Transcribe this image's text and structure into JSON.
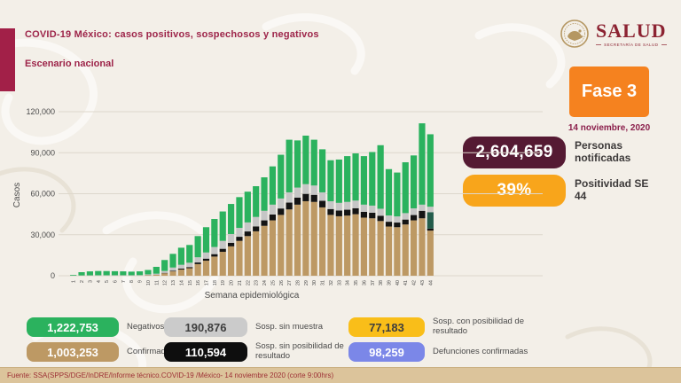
{
  "header": {
    "title": "COVID-19 México: casos positivos, sospechosos y negativos",
    "subtitle": "Escenario nacional"
  },
  "logo": {
    "name": "SALUD",
    "subtext": "SECRETARÍA DE SALUD"
  },
  "phase": {
    "label": "Fase 3",
    "date": "14 noviembre, 2020",
    "color": "#F5821F"
  },
  "stats": [
    {
      "value": "2,604,659",
      "label": "Personas notificadas",
      "color": "#551A33",
      "text_color": "#FFFFFF"
    },
    {
      "value": "39%",
      "label": "Positividad SE 44",
      "color": "#F8A51B",
      "text_color": "#FFFFFF"
    }
  ],
  "chart_data": {
    "type": "bar",
    "stacked": true,
    "title": "",
    "xlabel": "Semana epidemiológica",
    "ylabel": "Casos",
    "ylim": [
      0,
      120000
    ],
    "yticks": [
      0,
      30000,
      60000,
      90000,
      120000
    ],
    "ytick_labels": [
      "0",
      "30,000",
      "60,000",
      "90,000",
      "120,000"
    ],
    "grid": true,
    "legend_position": "bottom",
    "categories": [
      "1",
      "2",
      "3",
      "4",
      "5",
      "6",
      "7",
      "8",
      "9",
      "10",
      "11",
      "12",
      "13",
      "14",
      "15",
      "16",
      "17",
      "18",
      "19",
      "20",
      "21",
      "22",
      "23",
      "24",
      "25",
      "26",
      "27",
      "28",
      "29",
      "30",
      "31",
      "32",
      "33",
      "34",
      "35",
      "36",
      "37",
      "38",
      "39",
      "40",
      "41",
      "42",
      "43",
      "44"
    ],
    "series": [
      {
        "name": "Confirmados",
        "color": "#BD9964",
        "values": [
          30,
          50,
          80,
          100,
          100,
          100,
          100,
          100,
          150,
          400,
          700,
          1800,
          3200,
          4500,
          5500,
          8500,
          11000,
          14000,
          17500,
          21500,
          25500,
          29000,
          32500,
          36500,
          40500,
          44500,
          48500,
          52000,
          54500,
          54000,
          50000,
          44500,
          43500,
          44000,
          45000,
          42500,
          42000,
          40000,
          36000,
          35500,
          37500,
          40500,
          42000,
          33000
        ]
      },
      {
        "name": "Sosp. sin posibilidad de resultado",
        "color": "#141414",
        "values": [
          0,
          0,
          0,
          0,
          0,
          0,
          0,
          0,
          0,
          100,
          100,
          300,
          500,
          700,
          800,
          1200,
          1500,
          1800,
          2200,
          2600,
          3000,
          3400,
          3600,
          4000,
          4300,
          4700,
          5000,
          5200,
          5400,
          5200,
          4800,
          4300,
          4200,
          4300,
          4400,
          4200,
          4100,
          3900,
          3500,
          3400,
          3600,
          3900,
          5500,
          1500
        ]
      },
      {
        "name": "Sosp. con posibilidad de resultado",
        "color": "#235C4B",
        "values": [
          0,
          0,
          0,
          0,
          0,
          0,
          0,
          0,
          0,
          0,
          0,
          0,
          0,
          0,
          0,
          0,
          0,
          0,
          0,
          0,
          0,
          0,
          0,
          0,
          0,
          0,
          0,
          0,
          0,
          0,
          0,
          0,
          0,
          0,
          0,
          0,
          0,
          0,
          0,
          0,
          0,
          0,
          0,
          12000
        ]
      },
      {
        "name": "Sosp. sin muestra",
        "color": "#C6C6C6",
        "values": [
          70,
          150,
          200,
          250,
          250,
          250,
          250,
          250,
          300,
          500,
          700,
          1400,
          2300,
          2800,
          3200,
          3800,
          4500,
          5200,
          5800,
          6400,
          6500,
          6600,
          6900,
          7000,
          7200,
          7300,
          7500,
          7300,
          7100,
          6800,
          6200,
          5700,
          5600,
          5700,
          5600,
          5300,
          5200,
          5100,
          4600,
          4500,
          4700,
          4900,
          4500,
          4000
        ]
      },
      {
        "name": "Negativos",
        "color": "#2BB25E",
        "values": [
          500,
          2400,
          2900,
          3100,
          3050,
          2950,
          2850,
          2650,
          2750,
          3200,
          5000,
          8000,
          10000,
          12500,
          13000,
          15500,
          18500,
          20500,
          21500,
          22000,
          22500,
          22500,
          22500,
          24500,
          28000,
          32000,
          38500,
          34500,
          35500,
          33500,
          31500,
          30000,
          31700,
          33500,
          34500,
          35500,
          39200,
          46500,
          33900,
          32100,
          37200,
          38700,
          59500,
          53000
        ]
      }
    ]
  },
  "legend": {
    "items": [
      {
        "value": "1,222,753",
        "label": "Negativos",
        "color": "#2BB25E",
        "text_color": "#FFFFFF"
      },
      {
        "value": "190,876",
        "label": "Sosp. sin muestra",
        "color": "#CBCBCB",
        "text_color": "#3E3E3E"
      },
      {
        "value": "77,183",
        "label": "Sosp. con posibilidad de resultado",
        "color": "#F9BE19",
        "text_color": "#3E3E3E"
      },
      {
        "value": "1,003,253",
        "label": "Confirmados",
        "color": "#BD9964",
        "text_color": "#FFFFFF"
      },
      {
        "value": "110,594",
        "label": "Sosp. sin posibilidad de resultado",
        "color": "#0E0E0E",
        "text_color": "#FFFFFF"
      },
      {
        "value": "98,259",
        "label": "Defunciones confirmadas",
        "color": "#7B87E8",
        "text_color": "#FFFFFF"
      }
    ]
  },
  "footer": {
    "source": "Fuente: SSA(SPPS/DGE/InDRE/Informe técnico.COVID-19 /México- 14 noviembre 2020 (corte 9:00hrs)"
  }
}
